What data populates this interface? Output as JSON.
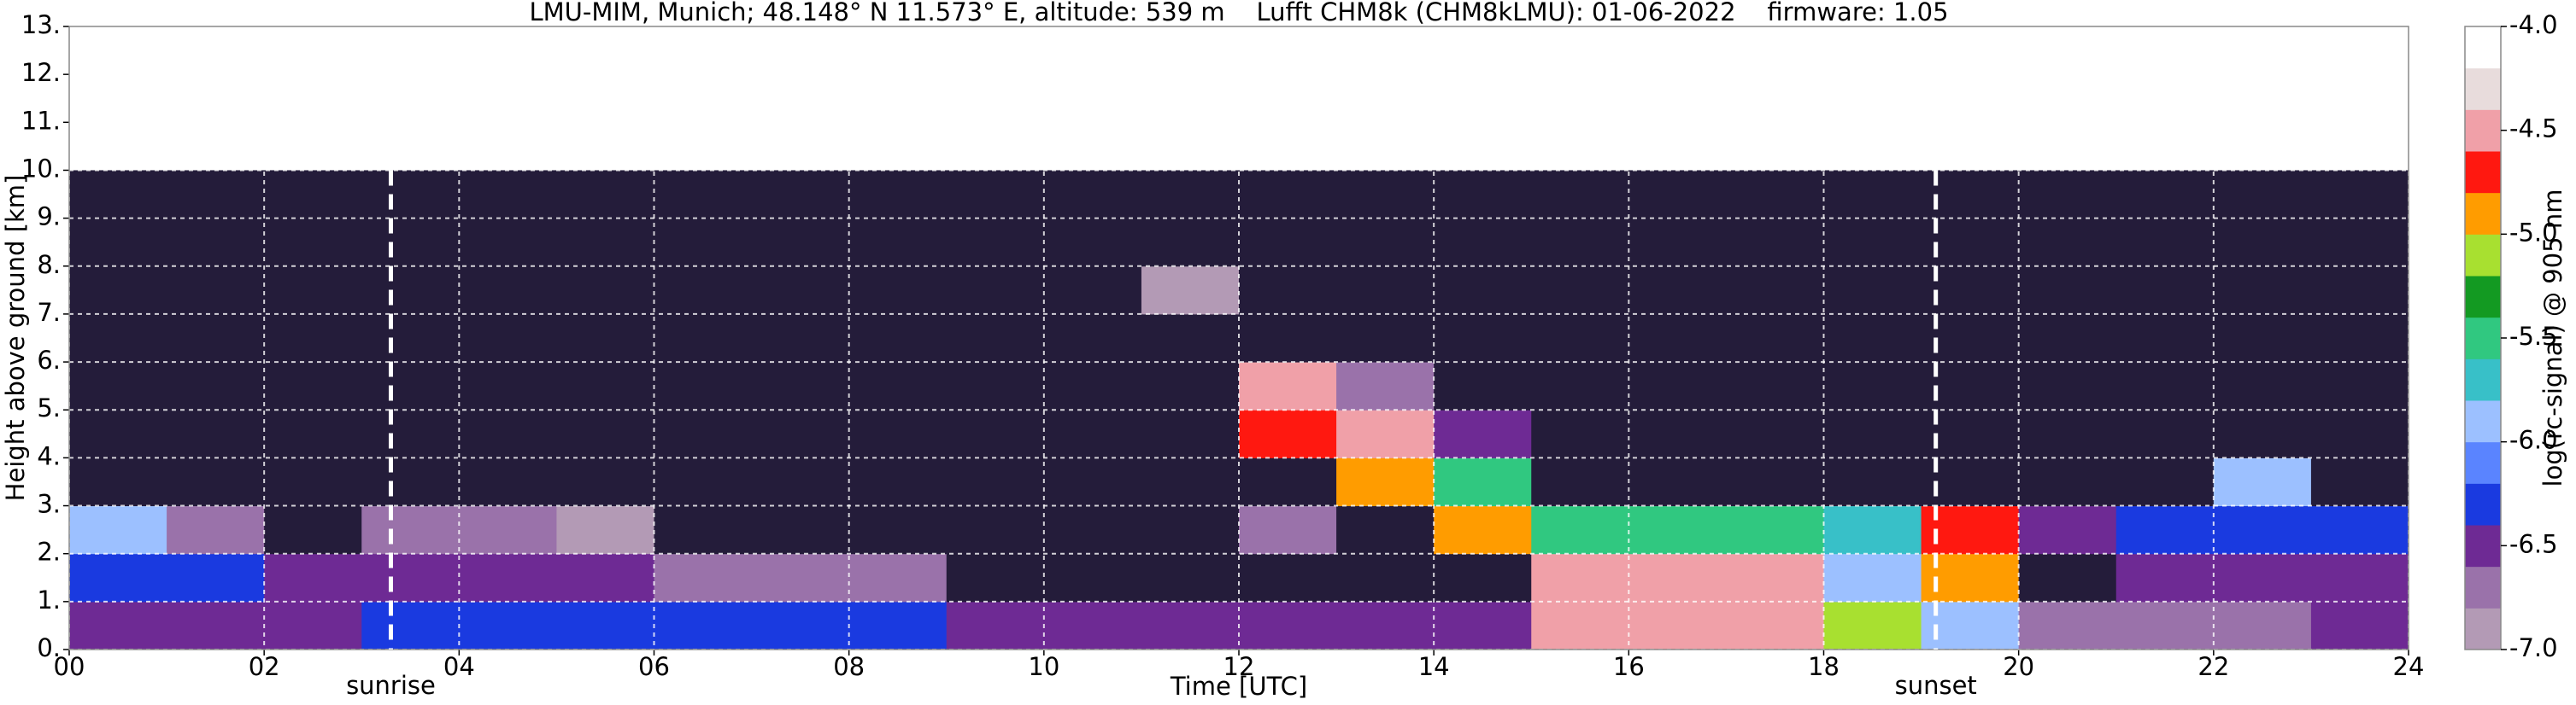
{
  "chart_data": {
    "type": "heatmap",
    "title": "LMU-MIM, Munich; 48.148° N 11.573° E, altitude: 539 m    Lufft CHM8k (CHM8kLMU): 01-06-2022    firmware: 1.05",
    "xlabel": "Time [UTC]",
    "ylabel": "Height above ground [km]",
    "colorbar_label": "log(rc-signal) @ 905 nm",
    "xlim": [
      0,
      24
    ],
    "ylim": [
      0,
      13
    ],
    "xticks": [
      {
        "value": 0,
        "label": "00"
      },
      {
        "value": 2,
        "label": "02"
      },
      {
        "value": 4,
        "label": "04"
      },
      {
        "value": 6,
        "label": "06"
      },
      {
        "value": 8,
        "label": "08"
      },
      {
        "value": 10,
        "label": "10"
      },
      {
        "value": 12,
        "label": "12"
      },
      {
        "value": 14,
        "label": "14"
      },
      {
        "value": 16,
        "label": "16"
      },
      {
        "value": 18,
        "label": "18"
      },
      {
        "value": 20,
        "label": "20"
      },
      {
        "value": 22,
        "label": "22"
      },
      {
        "value": 24,
        "label": "24"
      }
    ],
    "yticks": [
      {
        "value": 0,
        "label": "0."
      },
      {
        "value": 1,
        "label": "1."
      },
      {
        "value": 2,
        "label": "2."
      },
      {
        "value": 3,
        "label": "3."
      },
      {
        "value": 4,
        "label": "4."
      },
      {
        "value": 5,
        "label": "5."
      },
      {
        "value": 6,
        "label": "6."
      },
      {
        "value": 7,
        "label": "7."
      },
      {
        "value": 8,
        "label": "8."
      },
      {
        "value": 9,
        "label": "9."
      },
      {
        "value": 10,
        "label": "10."
      },
      {
        "value": 11,
        "label": "11."
      },
      {
        "value": 12,
        "label": "12."
      },
      {
        "value": 13,
        "label": "13."
      }
    ],
    "grid": true,
    "x_edges": [
      0,
      1,
      2,
      3,
      4,
      5,
      6,
      7,
      8,
      9,
      10,
      11,
      12,
      13,
      14,
      15,
      16,
      17,
      18,
      19,
      20,
      21,
      22,
      23,
      24
    ],
    "y_edges": [
      0,
      1,
      2,
      3,
      4,
      5,
      6,
      7,
      8,
      9,
      10
    ],
    "z": [
      [
        -6.4,
        -6.4,
        -6.4,
        -6.3,
        -6.2,
        -6.2,
        -6.2,
        -6.2,
        -6.2,
        -6.6,
        -6.6,
        -6.6,
        -6.6,
        -6.6,
        -6.6,
        -4.5,
        -4.4,
        -4.4,
        -5.2,
        -6.0,
        -6.7,
        -6.7,
        -6.7,
        -6.4
      ],
      [
        -6.3,
        -6.3,
        -6.6,
        -6.6,
        -6.6,
        -6.6,
        -6.7,
        -6.7,
        -6.8,
        -7.2,
        -7.2,
        -7.2,
        -7.2,
        -7.2,
        -7.2,
        -4.6,
        -4.5,
        -4.5,
        -6.0,
        -5.0,
        -7.2,
        -6.5,
        -6.5,
        -6.6
      ],
      [
        -6.0,
        -6.8,
        -7.2,
        -6.8,
        -6.8,
        -6.9,
        -7.2,
        -7.2,
        -7.2,
        -7.2,
        -7.2,
        -7.2,
        -6.8,
        -7.2,
        -5.0,
        -5.5,
        -5.5,
        -5.5,
        -5.8,
        -4.8,
        -6.4,
        -6.2,
        -6.2,
        -6.2
      ],
      [
        -7.2,
        -7.2,
        -7.2,
        -7.2,
        -7.2,
        -7.2,
        -7.2,
        -7.2,
        -7.2,
        -7.2,
        -7.2,
        -7.2,
        -7.2,
        -5.0,
        -5.5,
        -7.2,
        -7.2,
        -7.2,
        -7.2,
        -7.2,
        -7.2,
        -7.2,
        -6.0,
        -7.2
      ],
      [
        -7.2,
        -7.2,
        -7.2,
        -7.2,
        -7.2,
        -7.2,
        -7.2,
        -7.2,
        -7.2,
        -7.2,
        -7.2,
        -7.2,
        -4.8,
        -4.5,
        -6.5,
        -7.2,
        -7.2,
        -7.2,
        -7.2,
        -7.2,
        -7.2,
        -7.2,
        -7.2,
        -7.2
      ],
      [
        -7.2,
        -7.2,
        -7.2,
        -7.2,
        -7.2,
        -7.2,
        -7.2,
        -7.2,
        -7.2,
        -7.2,
        -7.2,
        -7.2,
        -4.6,
        -6.8,
        -7.2,
        -7.2,
        -7.2,
        -7.2,
        -7.2,
        -7.2,
        -7.2,
        -7.2,
        -7.2,
        -7.2
      ],
      [
        -7.2,
        -7.2,
        -7.2,
        -7.2,
        -7.2,
        -7.2,
        -7.2,
        -7.2,
        -7.2,
        -7.2,
        -7.2,
        -7.2,
        -7.2,
        -7.2,
        -7.2,
        -7.2,
        -7.2,
        -7.2,
        -7.2,
        -7.2,
        -7.2,
        -7.2,
        -7.2,
        -7.2
      ],
      [
        -7.2,
        -7.2,
        -7.2,
        -7.2,
        -7.2,
        -7.2,
        -7.2,
        -7.2,
        -7.2,
        -7.2,
        -7.2,
        -6.9,
        -7.2,
        -7.2,
        -7.2,
        -7.2,
        -7.2,
        -7.2,
        -7.2,
        -7.2,
        -7.2,
        -7.2,
        -7.2,
        -7.2
      ],
      [
        -7.2,
        -7.2,
        -7.2,
        -7.2,
        -7.2,
        -7.2,
        -7.2,
        -7.2,
        -7.2,
        -7.2,
        -7.2,
        -7.2,
        -7.2,
        -7.2,
        -7.2,
        -7.2,
        -7.2,
        -7.2,
        -7.2,
        -7.2,
        -7.2,
        -7.2,
        -7.2,
        -7.2
      ],
      [
        -7.2,
        -7.2,
        -7.2,
        -7.2,
        -7.2,
        -7.2,
        -7.2,
        -7.2,
        -7.2,
        -7.2,
        -7.2,
        -7.2,
        -7.2,
        -7.2,
        -7.2,
        -7.2,
        -7.2,
        -7.2,
        -7.2,
        -7.2,
        -7.2,
        -7.2,
        -7.2,
        -7.2
      ]
    ],
    "zlim": [
      -7,
      -4
    ],
    "zticks": [
      {
        "value": -7,
        "label": "-7.0"
      },
      {
        "value": -6.5,
        "label": "-6.5"
      },
      {
        "value": -6,
        "label": "-6.0"
      },
      {
        "value": -5.5,
        "label": "-5.5"
      },
      {
        "value": -5,
        "label": "-5.0"
      },
      {
        "value": -4.5,
        "label": "-4.5"
      },
      {
        "value": -4,
        "label": "-4.0"
      }
    ],
    "colorscale": [
      "#b39ab5",
      "#9a72aa",
      "#6e2a94",
      "#1a3ae0",
      "#5a84ff",
      "#9cc0ff",
      "#38c0c8",
      "#30c880",
      "#139a22",
      "#a8e030",
      "#ff9c00",
      "#ff1810",
      "#f0a0a8",
      "#e8dcdc",
      "#ffffff"
    ],
    "under_color": "#241c3a",
    "annotations": [
      {
        "text": "sunrise",
        "x": 3.3
      },
      {
        "text": "sunset",
        "x": 19.15
      }
    ]
  }
}
